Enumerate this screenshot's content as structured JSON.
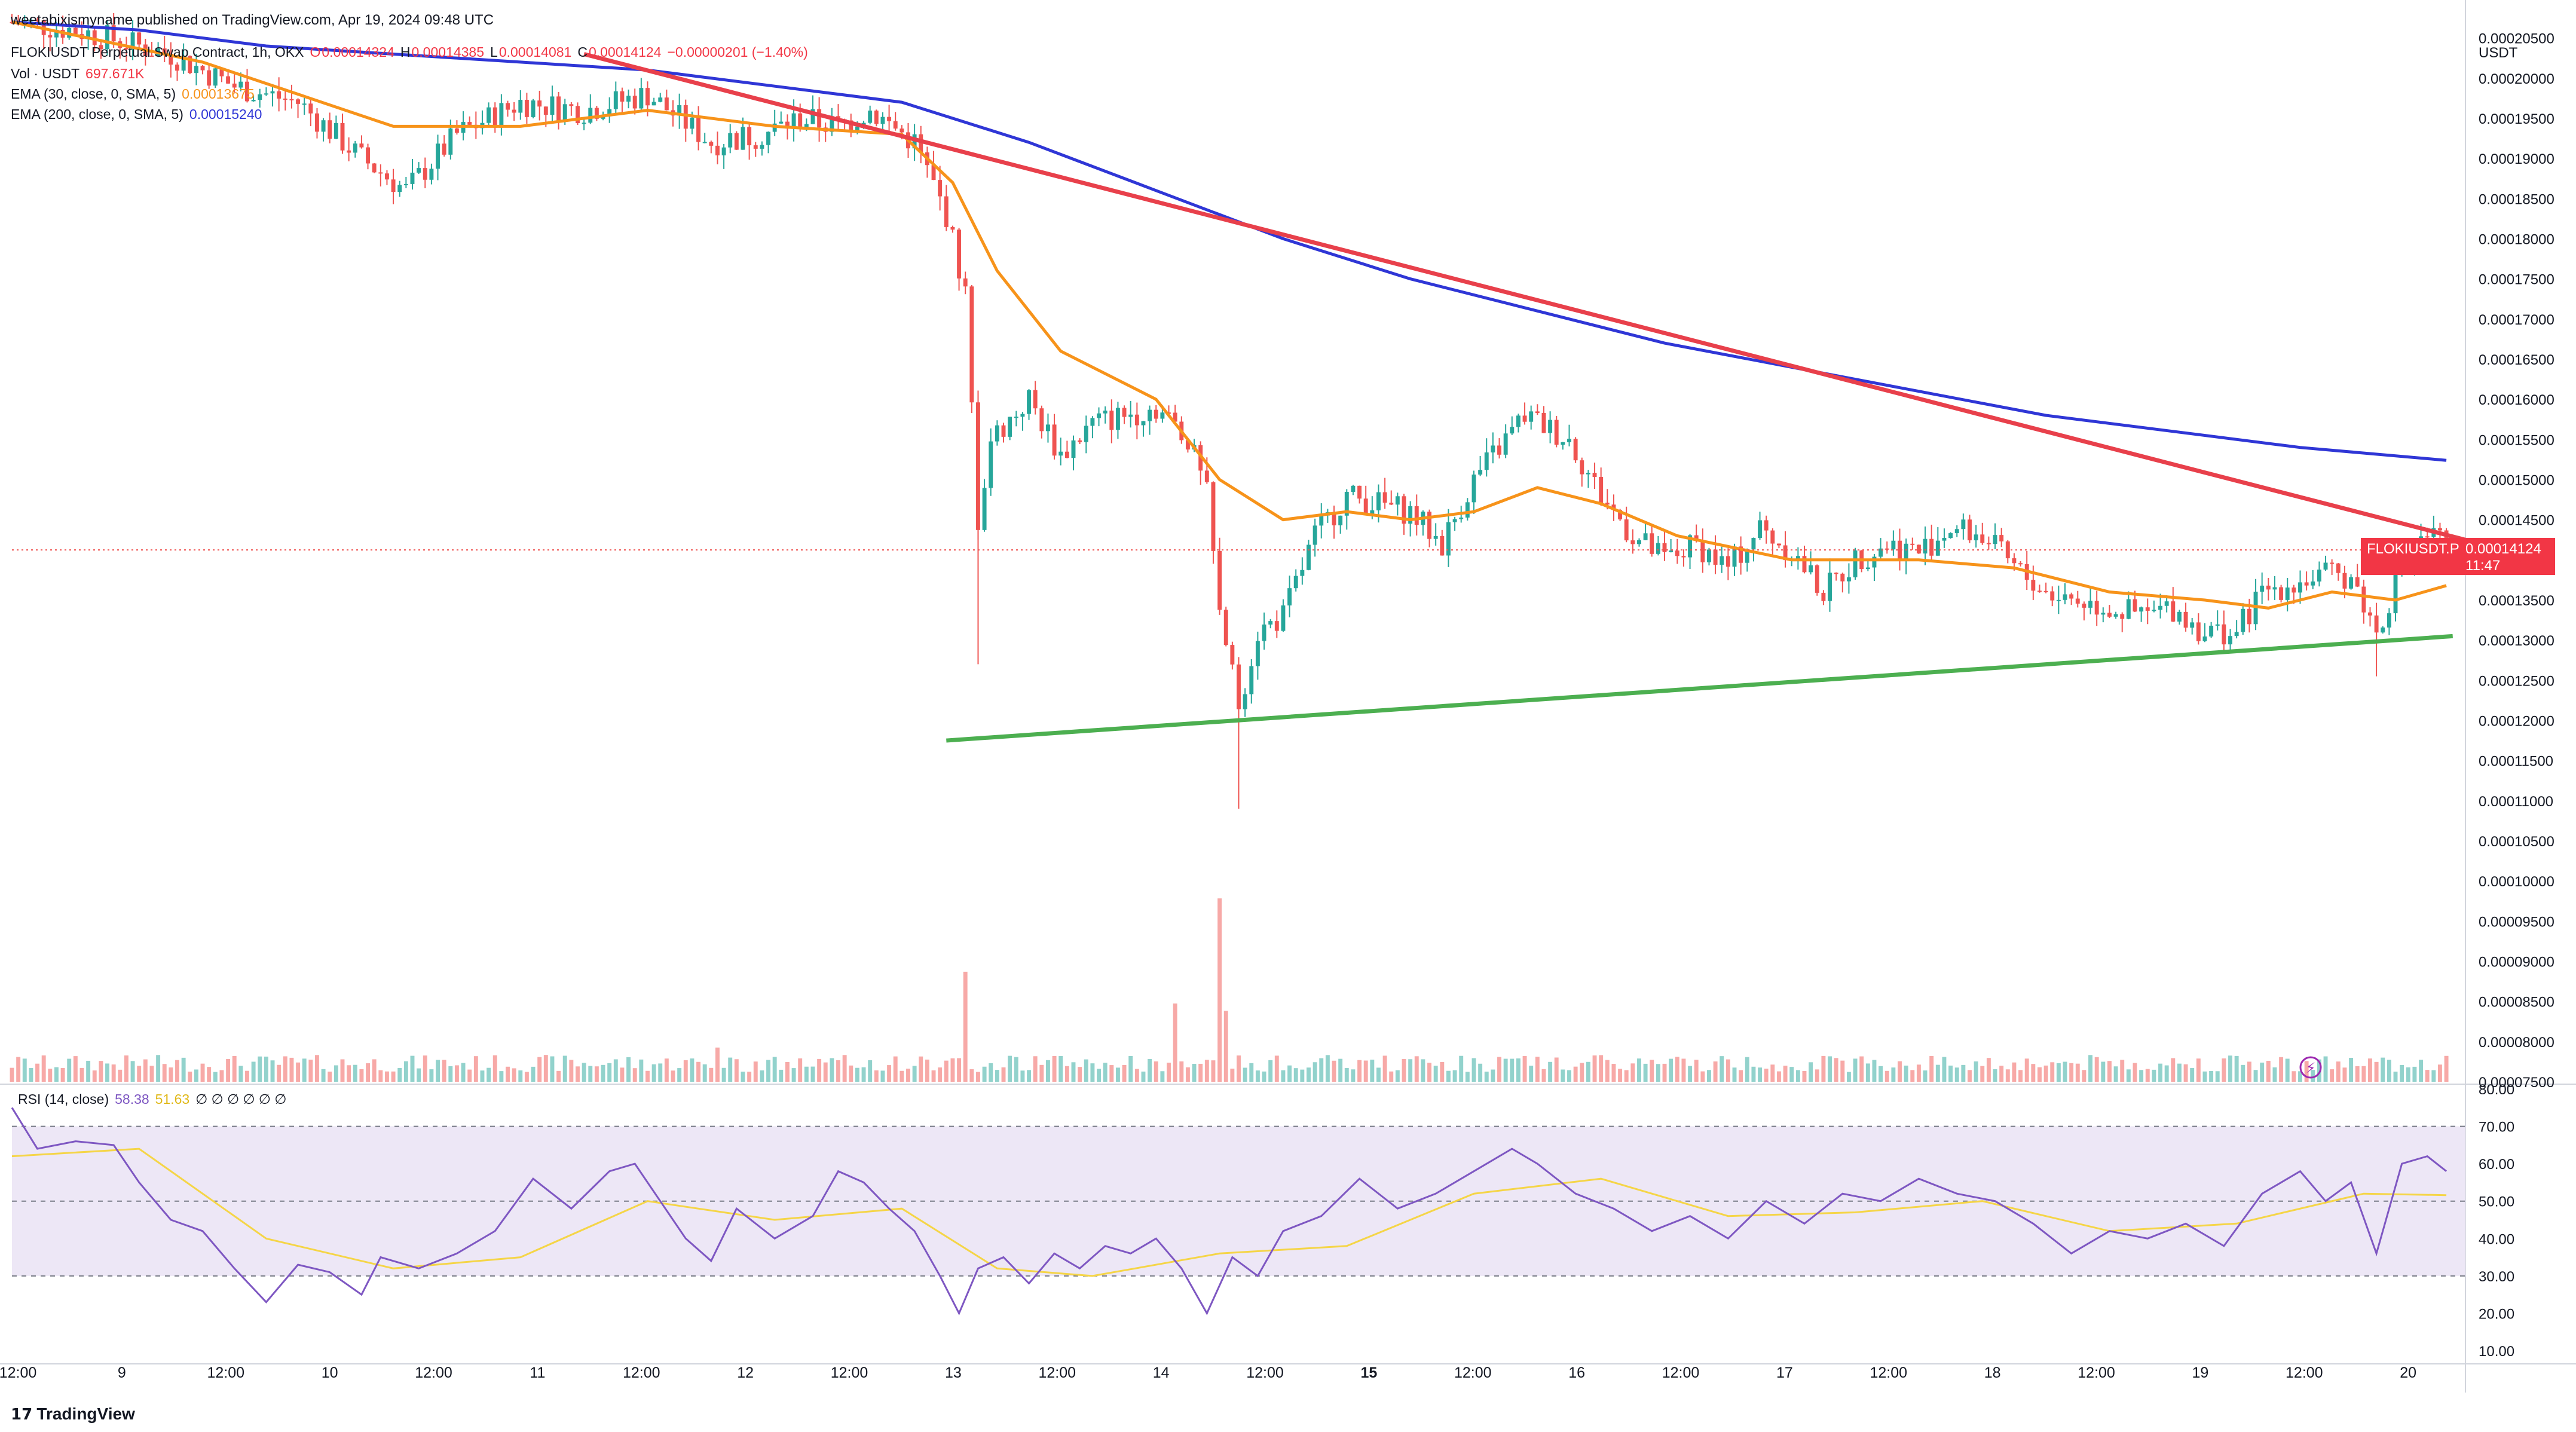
{
  "header": {
    "published": "weetabixismyname published on TradingView.com, Apr 19, 2024 09:48 UTC",
    "symbol": "FLOKIUSDT Perpetual Swap Contract, 1h, OKX",
    "ohlc": {
      "o_label": "O",
      "o": "0.00014324",
      "h_label": "H",
      "h": "0.00014385",
      "l_label": "L",
      "l": "0.00014081",
      "c_label": "C",
      "c": "0.00014124",
      "change": "−0.00000201 (−1.40%)"
    },
    "vol": {
      "label": "Vol · USDT",
      "value": "697.671K"
    },
    "ema30": {
      "label": "EMA (30, close, 0, SMA, 5)",
      "value": "0.00013675"
    },
    "ema200": {
      "label": "EMA (200, close, 0, SMA, 5)",
      "value": "0.00015240"
    },
    "rsi": {
      "label": "RSI (14, close)",
      "value": "58.38",
      "ma": "51.63",
      "extra": "∅ ∅ ∅ ∅ ∅ ∅"
    }
  },
  "price_axis": {
    "currency": "USDT",
    "ticks": [
      "0.00020500",
      "0.00020000",
      "0.00019500",
      "0.00019000",
      "0.00018500",
      "0.00018000",
      "0.00017500",
      "0.00017000",
      "0.00016500",
      "0.00016000",
      "0.00015500",
      "0.00015000",
      "0.00014500",
      "0.00014000",
      "0.00013500",
      "0.00013000",
      "0.00012500",
      "0.00012000",
      "0.00011500",
      "0.00011000",
      "0.00010500",
      "0.00010000",
      "0.00009500",
      "0.00009000",
      "0.00008500",
      "0.00008000",
      "0.00007500"
    ],
    "last_price_tag": {
      "symbol": "FLOKIUSDT.P",
      "price": "0.00014124",
      "countdown": "11:47"
    }
  },
  "rsi_axis": {
    "ticks": [
      "80.00",
      "70.00",
      "60.00",
      "50.00",
      "40.00",
      "30.00",
      "20.00",
      "10.00"
    ]
  },
  "time_axis": {
    "ticks": [
      "12:00",
      "9",
      "12:00",
      "10",
      "12:00",
      "11",
      "12:00",
      "12",
      "12:00",
      "13",
      "12:00",
      "14",
      "12:00",
      "15",
      "12:00",
      "16",
      "12:00",
      "17",
      "12:00",
      "18",
      "12:00",
      "19",
      "12:00",
      "20"
    ]
  },
  "branding": "TradingView",
  "colors": {
    "up": "#26a69a",
    "down": "#ef5350",
    "ema30": "#f7931a",
    "ema200": "#2f36d6",
    "resistance": "#e8404b",
    "support": "#4caf50",
    "rsi": "#7e57c2",
    "rsi_ma": "#f5d547",
    "rsi_band": "#ede7f6"
  },
  "chart_data": {
    "type": "candlestick",
    "timeframe": "1h",
    "x_range": [
      "2024-04-08 12:00",
      "2024-04-20 00:00"
    ],
    "y_range": [
      7.5e-05,
      0.0002075
    ],
    "last": 0.00014124,
    "price_path": [
      [
        0,
        0.000207
      ],
      [
        10,
        0.000206
      ],
      [
        25,
        0.000203
      ],
      [
        35,
        0.000199
      ],
      [
        45,
        0.000197
      ],
      [
        55,
        0.00019
      ],
      [
        62,
        0.000186
      ],
      [
        70,
        0.000193
      ],
      [
        80,
        0.000197
      ],
      [
        90,
        0.000196
      ],
      [
        100,
        0.000198
      ],
      [
        110,
        0.000192
      ],
      [
        118,
        0.000193
      ],
      [
        124,
        0.000195
      ],
      [
        130,
        0.000194
      ],
      [
        135,
        0.000196
      ],
      [
        142,
        0.000192
      ],
      [
        147,
        0.000183
      ],
      [
        150,
        0.000173
      ],
      [
        152,
        0.000145
      ],
      [
        154,
        0.000155
      ],
      [
        160,
        0.00016
      ],
      [
        165,
        0.000153
      ],
      [
        170,
        0.000157
      ],
      [
        175,
        0.000158
      ],
      [
        180,
        0.000159
      ],
      [
        185,
        0.000155
      ],
      [
        188,
        0.000148
      ],
      [
        190,
        0.000133
      ],
      [
        193,
        0.000122
      ],
      [
        196,
        0.000131
      ],
      [
        200,
        0.000133
      ],
      [
        205,
        0.000143
      ],
      [
        210,
        0.000148
      ],
      [
        215,
        0.000147
      ],
      [
        220,
        0.000146
      ],
      [
        225,
        0.000142
      ],
      [
        230,
        0.00015
      ],
      [
        238,
        0.000158
      ],
      [
        245,
        0.000155
      ],
      [
        250,
        0.000148
      ],
      [
        255,
        0.000143
      ],
      [
        260,
        0.00014
      ],
      [
        265,
        0.000142
      ],
      [
        270,
        0.000139
      ],
      [
        275,
        0.000144
      ],
      [
        280,
        0.000141
      ],
      [
        285,
        0.000136
      ],
      [
        290,
        0.00014
      ],
      [
        295,
        0.000142
      ],
      [
        300,
        0.000141
      ],
      [
        305,
        0.000144
      ],
      [
        310,
        0.000143
      ],
      [
        315,
        0.000139
      ],
      [
        320,
        0.000136
      ],
      [
        325,
        0.000135
      ],
      [
        330,
        0.000134
      ],
      [
        335,
        0.000133
      ],
      [
        340,
        0.000134
      ],
      [
        345,
        0.000131
      ],
      [
        350,
        0.000131
      ],
      [
        354,
        0.000136
      ],
      [
        358,
        0.000137
      ],
      [
        364,
        0.000138
      ],
      [
        368,
        0.000138
      ],
      [
        372,
        0.000131
      ],
      [
        376,
        0.000139
      ],
      [
        380,
        0.000143
      ],
      [
        383,
        0.000142
      ]
    ],
    "ema30_path": [
      [
        0,
        0.000207
      ],
      [
        30,
        0.000202
      ],
      [
        60,
        0.000194
      ],
      [
        80,
        0.000194
      ],
      [
        100,
        0.000196
      ],
      [
        120,
        0.000194
      ],
      [
        140,
        0.000193
      ],
      [
        148,
        0.000187
      ],
      [
        155,
        0.000176
      ],
      [
        165,
        0.000166
      ],
      [
        180,
        0.00016
      ],
      [
        190,
        0.00015
      ],
      [
        200,
        0.000145
      ],
      [
        210,
        0.000146
      ],
      [
        220,
        0.000145
      ],
      [
        230,
        0.000146
      ],
      [
        240,
        0.000149
      ],
      [
        250,
        0.000147
      ],
      [
        262,
        0.000143
      ],
      [
        280,
        0.00014
      ],
      [
        300,
        0.00014
      ],
      [
        315,
        0.000139
      ],
      [
        330,
        0.000136
      ],
      [
        345,
        0.000135
      ],
      [
        355,
        0.000134
      ],
      [
        365,
        0.000136
      ],
      [
        375,
        0.000135
      ],
      [
        383,
        0.0001368
      ]
    ],
    "ema200_path": [
      [
        0,
        0.000207
      ],
      [
        20,
        0.000206
      ],
      [
        40,
        0.000204
      ],
      [
        60,
        0.000203
      ],
      [
        80,
        0.000202
      ],
      [
        100,
        0.000201
      ],
      [
        120,
        0.000199
      ],
      [
        140,
        0.000197
      ],
      [
        160,
        0.000192
      ],
      [
        180,
        0.000186
      ],
      [
        200,
        0.00018
      ],
      [
        220,
        0.000175
      ],
      [
        240,
        0.000171
      ],
      [
        260,
        0.000167
      ],
      [
        280,
        0.000164
      ],
      [
        300,
        0.000161
      ],
      [
        320,
        0.000158
      ],
      [
        340,
        0.000156
      ],
      [
        360,
        0.000154
      ],
      [
        383,
        0.0001524
      ]
    ],
    "trendlines": [
      {
        "name": "resistance",
        "from": [
          90,
          0.000203
        ],
        "to": [
          386,
          0.0001425
        ]
      },
      {
        "name": "support",
        "from": [
          147,
          0.0001175
        ],
        "to": [
          384,
          0.0001305
        ]
      }
    ],
    "volume_range": [
      0,
      1100000
    ],
    "volume_spikes": [
      [
        150,
        450000
      ],
      [
        190,
        750000
      ],
      [
        183,
        320000
      ],
      [
        191,
        290000
      ],
      [
        111,
        140000
      ]
    ],
    "rsi": {
      "range": [
        10,
        80
      ],
      "bands": [
        30,
        70
      ],
      "midline": 50,
      "path": [
        [
          0,
          75
        ],
        [
          4,
          64
        ],
        [
          10,
          66
        ],
        [
          16,
          65
        ],
        [
          20,
          55
        ],
        [
          25,
          45
        ],
        [
          30,
          42
        ],
        [
          35,
          32
        ],
        [
          40,
          23
        ],
        [
          45,
          33
        ],
        [
          50,
          31
        ],
        [
          55,
          25
        ],
        [
          58,
          35
        ],
        [
          64,
          32
        ],
        [
          70,
          36
        ],
        [
          76,
          42
        ],
        [
          82,
          56
        ],
        [
          88,
          48
        ],
        [
          94,
          58
        ],
        [
          98,
          60
        ],
        [
          102,
          50
        ],
        [
          106,
          40
        ],
        [
          110,
          34
        ],
        [
          114,
          48
        ],
        [
          120,
          40
        ],
        [
          126,
          46
        ],
        [
          130,
          58
        ],
        [
          134,
          55
        ],
        [
          138,
          48
        ],
        [
          142,
          42
        ],
        [
          146,
          30
        ],
        [
          149,
          20
        ],
        [
          152,
          32
        ],
        [
          156,
          35
        ],
        [
          160,
          28
        ],
        [
          164,
          36
        ],
        [
          168,
          32
        ],
        [
          172,
          38
        ],
        [
          176,
          36
        ],
        [
          180,
          40
        ],
        [
          184,
          32
        ],
        [
          188,
          20
        ],
        [
          192,
          35
        ],
        [
          196,
          30
        ],
        [
          200,
          42
        ],
        [
          206,
          46
        ],
        [
          212,
          56
        ],
        [
          218,
          48
        ],
        [
          224,
          52
        ],
        [
          230,
          58
        ],
        [
          236,
          64
        ],
        [
          240,
          60
        ],
        [
          246,
          52
        ],
        [
          252,
          48
        ],
        [
          258,
          42
        ],
        [
          264,
          46
        ],
        [
          270,
          40
        ],
        [
          276,
          50
        ],
        [
          282,
          44
        ],
        [
          288,
          52
        ],
        [
          294,
          50
        ],
        [
          300,
          56
        ],
        [
          306,
          52
        ],
        [
          312,
          50
        ],
        [
          318,
          44
        ],
        [
          324,
          36
        ],
        [
          330,
          42
        ],
        [
          336,
          40
        ],
        [
          342,
          44
        ],
        [
          348,
          38
        ],
        [
          354,
          52
        ],
        [
          360,
          58
        ],
        [
          364,
          50
        ],
        [
          368,
          55
        ],
        [
          372,
          36
        ],
        [
          376,
          60
        ],
        [
          380,
          62
        ],
        [
          383,
          58
        ]
      ],
      "ma_path": [
        [
          0,
          62
        ],
        [
          20,
          64
        ],
        [
          40,
          40
        ],
        [
          60,
          32
        ],
        [
          80,
          35
        ],
        [
          100,
          50
        ],
        [
          120,
          45
        ],
        [
          140,
          48
        ],
        [
          155,
          32
        ],
        [
          170,
          30
        ],
        [
          190,
          36
        ],
        [
          210,
          38
        ],
        [
          230,
          52
        ],
        [
          250,
          56
        ],
        [
          270,
          46
        ],
        [
          290,
          47
        ],
        [
          310,
          50
        ],
        [
          330,
          42
        ],
        [
          350,
          44
        ],
        [
          370,
          52
        ],
        [
          383,
          51.6
        ]
      ]
    }
  }
}
